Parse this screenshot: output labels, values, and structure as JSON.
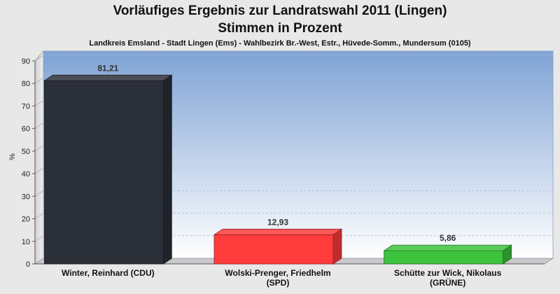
{
  "chart_data": {
    "type": "bar",
    "title": "Vorläufiges Ergebnis zur Landratswahl 2011 (Lingen)",
    "title2": "Stimmen in Prozent",
    "subtitle": "Landkreis Emsland - Stadt Lingen (Ems) - Wahlbezirk Br.-West, Estr., Hüvede-Somm., Mundersum (0105)",
    "ylabel": "%",
    "ylim": [
      0,
      90
    ],
    "yticks": [
      "0",
      "10",
      "20",
      "30",
      "40",
      "50",
      "60",
      "70",
      "80",
      "90"
    ],
    "grid": true,
    "categories": [
      [
        "Winter, Reinhard (CDU)"
      ],
      [
        "Wolski-Prenger, Friedhelm",
        "(SPD)"
      ],
      [
        "Schütte zur Wick, Nikolaus",
        "(GRÜNE)"
      ]
    ],
    "values": [
      81.21,
      12.93,
      5.86
    ],
    "value_labels": [
      "81,21",
      "12,93",
      "5,86"
    ],
    "colors": [
      "#2b2f38",
      "#ff3b3b",
      "#3cc23c"
    ]
  }
}
